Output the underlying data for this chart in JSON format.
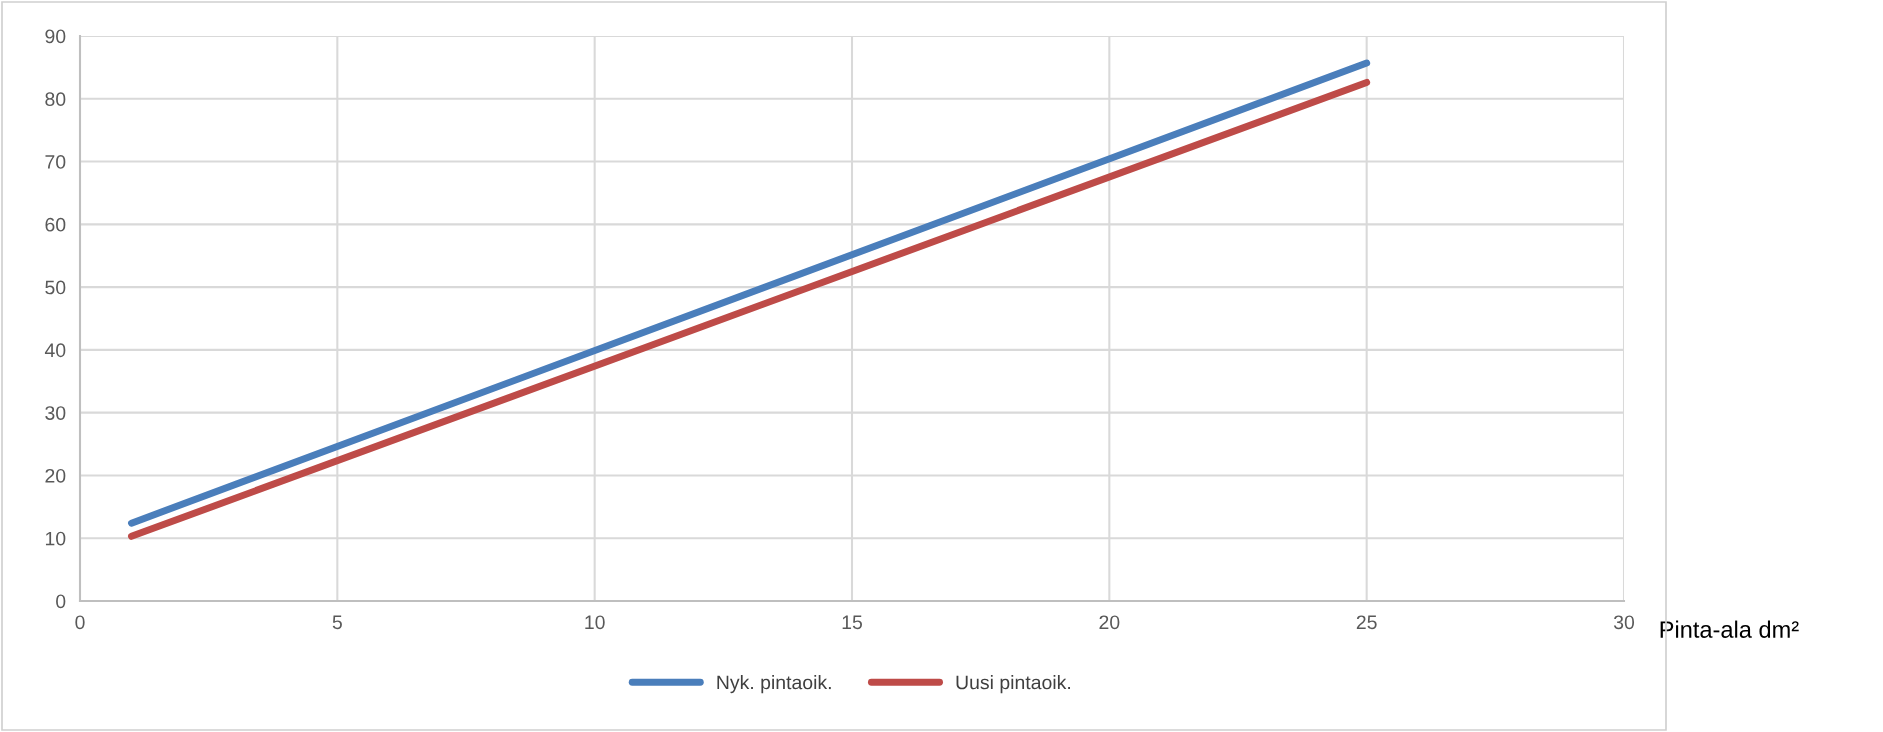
{
  "chart_data": {
    "type": "line",
    "xlabel": "Pinta-ala dm²",
    "x": [
      1,
      25
    ],
    "series": [
      {
        "name": "Nyk. pintaoik.",
        "color": "#4a7ebb",
        "values": [
          12.4,
          85.7
        ]
      },
      {
        "name": "Uusi pintaoik.",
        "color": "#be4b48",
        "values": [
          10.3,
          82.6
        ]
      }
    ],
    "xlim": [
      0,
      30
    ],
    "xticks": [
      0,
      5,
      10,
      15,
      20,
      25,
      30
    ],
    "ylim": [
      0,
      90
    ],
    "yticks": [
      0,
      10,
      20,
      30,
      40,
      50,
      60,
      70,
      80,
      90
    ],
    "grid": true,
    "legend": "bottom",
    "marker": "none",
    "line_style": "solid"
  }
}
